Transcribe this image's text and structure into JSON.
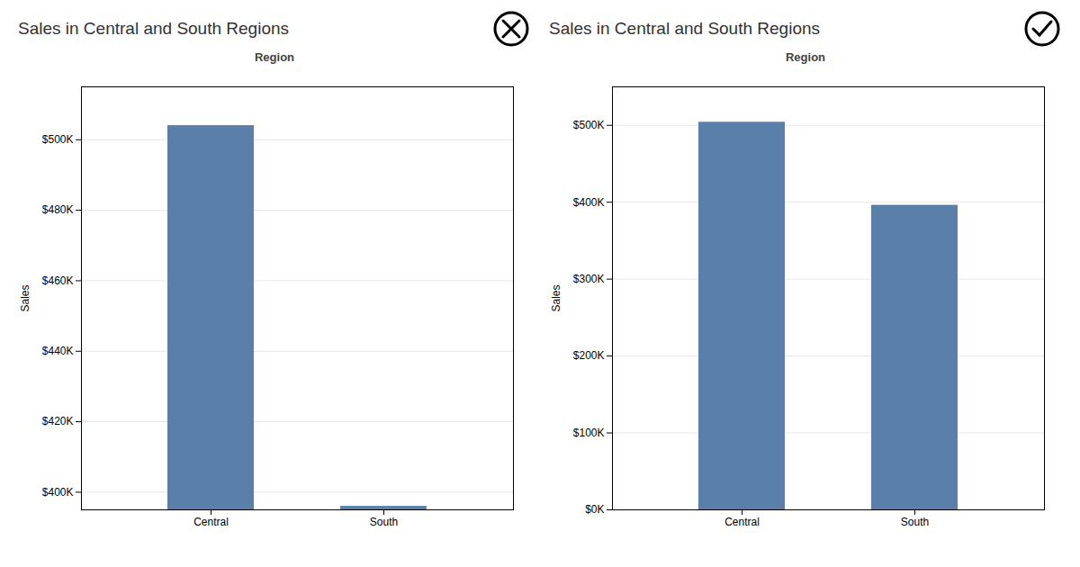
{
  "chart_data": [
    {
      "type": "bar",
      "title": "Sales in Central and South Regions",
      "xlabel": "Region",
      "ylabel": "Sales",
      "categories": [
        "Central",
        "South"
      ],
      "values": [
        504000,
        396000
      ],
      "color": "#5a7fa8",
      "ylim": [
        395000,
        515000
      ],
      "yticks": [
        {
          "value": 400000,
          "label": "$400K"
        },
        {
          "value": 420000,
          "label": "$420K"
        },
        {
          "value": 440000,
          "label": "$440K"
        },
        {
          "value": 460000,
          "label": "$460K"
        },
        {
          "value": 480000,
          "label": "$480K"
        },
        {
          "value": 500000,
          "label": "$500K"
        }
      ],
      "grid": true
    },
    {
      "type": "bar",
      "title": "Sales in Central and South Regions",
      "xlabel": "Region",
      "ylabel": "Sales",
      "categories": [
        "Central",
        "South"
      ],
      "values": [
        504000,
        396000
      ],
      "color": "#5a7fa8",
      "ylim": [
        0,
        550000
      ],
      "yticks": [
        {
          "value": 0,
          "label": "$0K"
        },
        {
          "value": 100000,
          "label": "$100K"
        },
        {
          "value": 200000,
          "label": "$200K"
        },
        {
          "value": 300000,
          "label": "$300K"
        },
        {
          "value": 400000,
          "label": "$400K"
        },
        {
          "value": 500000,
          "label": "$500K"
        }
      ],
      "grid": true
    }
  ]
}
